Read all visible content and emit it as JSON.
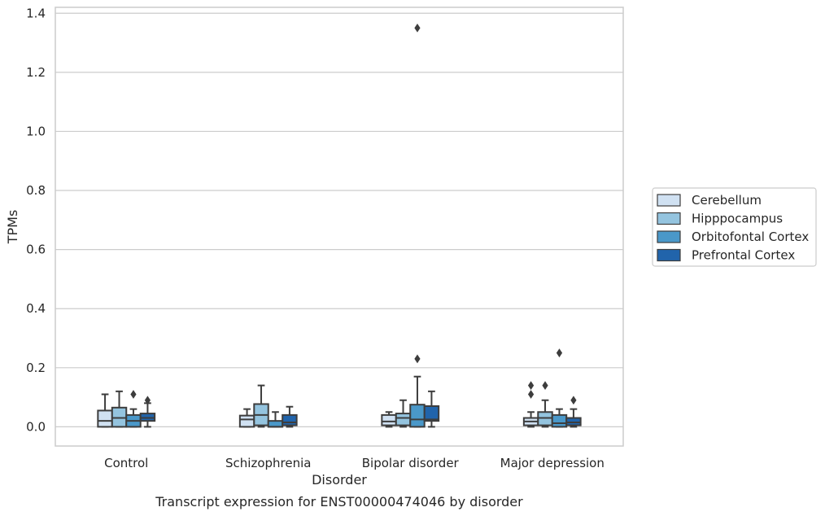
{
  "chart_data": {
    "type": "boxplot",
    "caption": "Transcript expression for ENST00000474046 by disorder",
    "xlabel": "Disorder",
    "ylabel": "TPMs",
    "ylim": [
      -0.065,
      1.42
    ],
    "yticks": [
      0.0,
      0.2,
      0.4,
      0.6,
      0.8,
      1.0,
      1.2,
      1.4
    ],
    "ytick_labels": [
      "0.0",
      "0.2",
      "0.4",
      "0.6",
      "0.8",
      "1.0",
      "1.2",
      "1.4"
    ],
    "grid": "horizontal",
    "legend_position": "right",
    "categories": [
      "Control",
      "Schizophrenia",
      "Bipolar disorder",
      "Major depression"
    ],
    "series": [
      {
        "name": "Cerebellum",
        "color": "#d0e1f2",
        "boxes": [
          {
            "whislo": 0.0,
            "q1": 0.0,
            "med": 0.02,
            "q3": 0.055,
            "whishi": 0.11,
            "fliers": []
          },
          {
            "whislo": 0.0,
            "q1": 0.0,
            "med": 0.025,
            "q3": 0.038,
            "whishi": 0.06,
            "fliers": []
          },
          {
            "whislo": 0.0,
            "q1": 0.005,
            "med": 0.018,
            "q3": 0.04,
            "whishi": 0.05,
            "fliers": []
          },
          {
            "whislo": 0.0,
            "q1": 0.005,
            "med": 0.018,
            "q3": 0.03,
            "whishi": 0.05,
            "fliers": [
              0.11,
              0.14
            ]
          }
        ]
      },
      {
        "name": "Hipppocampus",
        "color": "#94c4df",
        "boxes": [
          {
            "whislo": 0.0,
            "q1": 0.0,
            "med": 0.03,
            "q3": 0.065,
            "whishi": 0.12,
            "fliers": []
          },
          {
            "whislo": 0.0,
            "q1": 0.005,
            "med": 0.04,
            "q3": 0.077,
            "whishi": 0.14,
            "fliers": []
          },
          {
            "whislo": 0.0,
            "q1": 0.005,
            "med": 0.03,
            "q3": 0.045,
            "whishi": 0.09,
            "fliers": []
          },
          {
            "whislo": 0.0,
            "q1": 0.005,
            "med": 0.03,
            "q3": 0.05,
            "whishi": 0.09,
            "fliers": [
              0.14
            ]
          }
        ]
      },
      {
        "name": "Orbitofontal Cortex",
        "color": "#4a98c9",
        "boxes": [
          {
            "whislo": 0.0,
            "q1": 0.0,
            "med": 0.02,
            "q3": 0.04,
            "whishi": 0.06,
            "fliers": [
              0.11
            ]
          },
          {
            "whislo": 0.0,
            "q1": 0.0,
            "med": 0.0,
            "q3": 0.02,
            "whishi": 0.05,
            "fliers": []
          },
          {
            "whislo": 0.0,
            "q1": 0.0,
            "med": 0.025,
            "q3": 0.075,
            "whishi": 0.17,
            "fliers": [
              0.23,
              1.35
            ]
          },
          {
            "whislo": 0.0,
            "q1": 0.0,
            "med": 0.012,
            "q3": 0.04,
            "whishi": 0.06,
            "fliers": [
              0.25
            ]
          }
        ]
      },
      {
        "name": "Prefrontal Cortex",
        "color": "#2164ab",
        "boxes": [
          {
            "whislo": 0.0,
            "q1": 0.02,
            "med": 0.03,
            "q3": 0.045,
            "whishi": 0.08,
            "fliers": [
              0.09
            ]
          },
          {
            "whislo": 0.0,
            "q1": 0.005,
            "med": 0.015,
            "q3": 0.04,
            "whishi": 0.068,
            "fliers": []
          },
          {
            "whislo": 0.0,
            "q1": 0.02,
            "med": 0.025,
            "q3": 0.07,
            "whishi": 0.12,
            "fliers": []
          },
          {
            "whislo": 0.0,
            "q1": 0.005,
            "med": 0.015,
            "q3": 0.03,
            "whishi": 0.06,
            "fliers": [
              0.09
            ]
          }
        ]
      }
    ]
  }
}
